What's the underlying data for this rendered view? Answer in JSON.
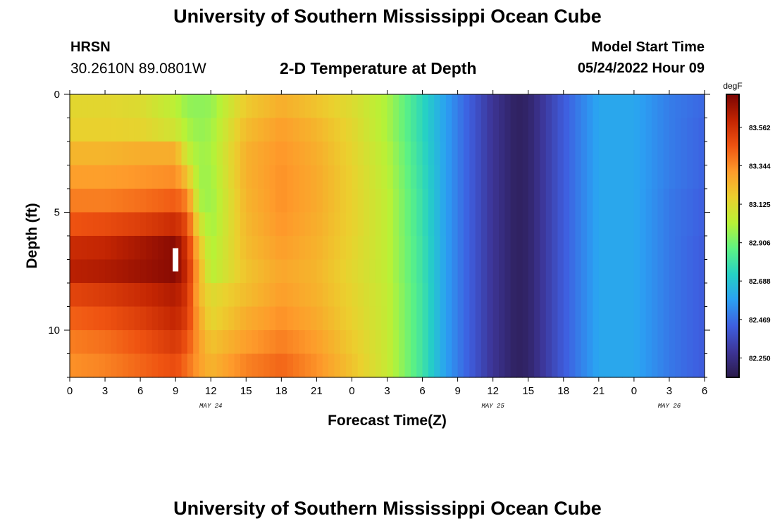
{
  "header": {
    "title": "University of Southern Mississippi Ocean Cube",
    "station": "HRSN",
    "coordinates": "30.2610N  89.0801W",
    "subtitle": "2-D Temperature at Depth",
    "model_start_label": "Model Start Time",
    "model_start_value": "05/24/2022 Hour 09"
  },
  "footer": {
    "title": "University of Southern Mississippi Ocean Cube"
  },
  "chart_data": {
    "type": "heatmap",
    "title": "2-D Temperature at Depth",
    "xlabel": "Forecast Time(Z)",
    "ylabel": "Depth (ft)",
    "x_hours": [
      0,
      3,
      6,
      9,
      12,
      15,
      18,
      21,
      24,
      27,
      30,
      33,
      36,
      39,
      42,
      45,
      48,
      51,
      54
    ],
    "x_tick_labels": [
      "0",
      "3",
      "6",
      "9",
      "12",
      "15",
      "18",
      "21",
      "0",
      "3",
      "6",
      "9",
      "12",
      "15",
      "18",
      "21",
      "0",
      "3",
      "6"
    ],
    "x_range_hours": [
      0,
      54
    ],
    "day_labels": [
      {
        "hour": 12,
        "label": "MAY 24"
      },
      {
        "hour": 36,
        "label": "MAY 25"
      },
      {
        "hour": 51,
        "label": "MAY 26"
      }
    ],
    "y_ticks": [
      0,
      5,
      10
    ],
    "ylim": [
      0,
      12
    ],
    "y_inverted": true,
    "colorbar": {
      "unit": "degF",
      "ticks": [
        "83.562",
        "83.344",
        "83.125",
        "82.906",
        "82.688",
        "82.469",
        "82.250"
      ],
      "tick_values": [
        83.562,
        83.344,
        83.125,
        82.906,
        82.688,
        82.469,
        82.25
      ],
      "range": [
        82.14,
        83.75
      ],
      "colors": [
        "#2a1a4a",
        "#3d3597",
        "#3e5fe0",
        "#2ba0f3",
        "#25d0c5",
        "#5df283",
        "#b8f236",
        "#ebd02e",
        "#fe9b2b",
        "#ef5311",
        "#c22402",
        "#7a0403"
      ]
    },
    "marker": {
      "hour": 9,
      "depth": 7
    },
    "depth_levels": [
      0,
      1,
      2,
      3,
      4,
      5,
      6,
      7,
      8,
      9,
      10,
      11
    ],
    "time_hours": [
      0,
      3,
      6,
      9,
      10,
      11,
      12,
      15,
      18,
      21,
      24,
      27,
      30,
      32,
      33,
      36,
      38,
      39,
      42,
      45,
      48,
      51,
      54
    ],
    "values": [
      [
        83.14,
        83.14,
        83.12,
        83.03,
        82.96,
        82.95,
        82.96,
        83.18,
        83.26,
        83.2,
        83.12,
        83.0,
        82.75,
        82.58,
        82.5,
        82.28,
        82.18,
        82.2,
        82.42,
        82.6,
        82.6,
        82.5,
        82.45
      ],
      [
        83.16,
        83.16,
        83.15,
        83.08,
        83.0,
        82.96,
        82.98,
        83.22,
        83.3,
        83.24,
        83.14,
        83.0,
        82.75,
        82.58,
        82.5,
        82.28,
        82.18,
        82.2,
        82.42,
        82.6,
        82.6,
        82.5,
        82.44
      ],
      [
        83.24,
        83.24,
        83.26,
        83.26,
        83.06,
        82.98,
        82.99,
        83.25,
        83.32,
        83.26,
        83.15,
        83.02,
        82.76,
        82.58,
        82.5,
        82.28,
        82.18,
        82.2,
        82.42,
        82.6,
        82.6,
        82.5,
        82.44
      ],
      [
        83.3,
        83.3,
        83.32,
        83.34,
        83.2,
        82.98,
        82.98,
        83.25,
        83.33,
        83.27,
        83.16,
        83.03,
        82.77,
        82.58,
        82.5,
        82.28,
        82.18,
        82.2,
        82.42,
        82.6,
        82.6,
        82.5,
        82.44
      ],
      [
        83.37,
        83.37,
        83.4,
        83.44,
        83.36,
        83.0,
        82.97,
        83.24,
        83.33,
        83.27,
        83.16,
        83.04,
        82.78,
        82.58,
        82.5,
        82.28,
        82.18,
        82.2,
        82.42,
        82.6,
        82.6,
        82.49,
        82.43
      ],
      [
        83.46,
        83.48,
        83.52,
        83.58,
        83.48,
        83.1,
        82.98,
        83.23,
        83.32,
        83.26,
        83.16,
        83.04,
        82.78,
        82.58,
        82.5,
        82.28,
        82.18,
        82.2,
        82.42,
        82.6,
        82.6,
        82.49,
        82.43
      ],
      [
        83.58,
        83.6,
        83.66,
        83.72,
        83.55,
        83.2,
        83.0,
        83.22,
        83.3,
        83.25,
        83.15,
        83.04,
        82.79,
        82.58,
        82.5,
        82.28,
        82.18,
        82.2,
        82.42,
        82.6,
        82.6,
        82.49,
        82.42
      ],
      [
        83.62,
        83.64,
        83.68,
        83.72,
        83.58,
        83.25,
        83.02,
        83.2,
        83.28,
        83.24,
        83.14,
        83.04,
        82.79,
        82.58,
        82.5,
        82.28,
        82.18,
        82.2,
        82.42,
        82.6,
        82.6,
        82.49,
        82.42
      ],
      [
        83.5,
        83.53,
        83.58,
        83.64,
        83.55,
        83.24,
        83.12,
        83.22,
        83.3,
        83.25,
        83.15,
        83.05,
        82.8,
        82.58,
        82.5,
        82.28,
        82.18,
        82.2,
        82.42,
        82.6,
        82.6,
        82.49,
        82.42
      ],
      [
        83.43,
        83.46,
        83.52,
        83.6,
        83.52,
        83.28,
        83.14,
        83.26,
        83.33,
        83.27,
        83.16,
        83.05,
        82.8,
        82.58,
        82.5,
        82.28,
        82.18,
        82.2,
        82.42,
        82.6,
        82.6,
        82.49,
        82.42
      ],
      [
        83.37,
        83.4,
        83.46,
        83.54,
        83.46,
        83.3,
        83.2,
        83.3,
        83.37,
        83.3,
        83.18,
        83.06,
        82.8,
        82.58,
        82.5,
        82.28,
        82.18,
        82.2,
        82.42,
        82.6,
        82.6,
        82.49,
        82.42
      ],
      [
        83.33,
        83.36,
        83.42,
        83.48,
        83.4,
        83.3,
        83.24,
        83.36,
        83.42,
        83.33,
        83.2,
        83.06,
        82.8,
        82.58,
        82.5,
        82.28,
        82.18,
        82.2,
        82.42,
        82.6,
        82.6,
        82.49,
        82.42
      ]
    ]
  }
}
